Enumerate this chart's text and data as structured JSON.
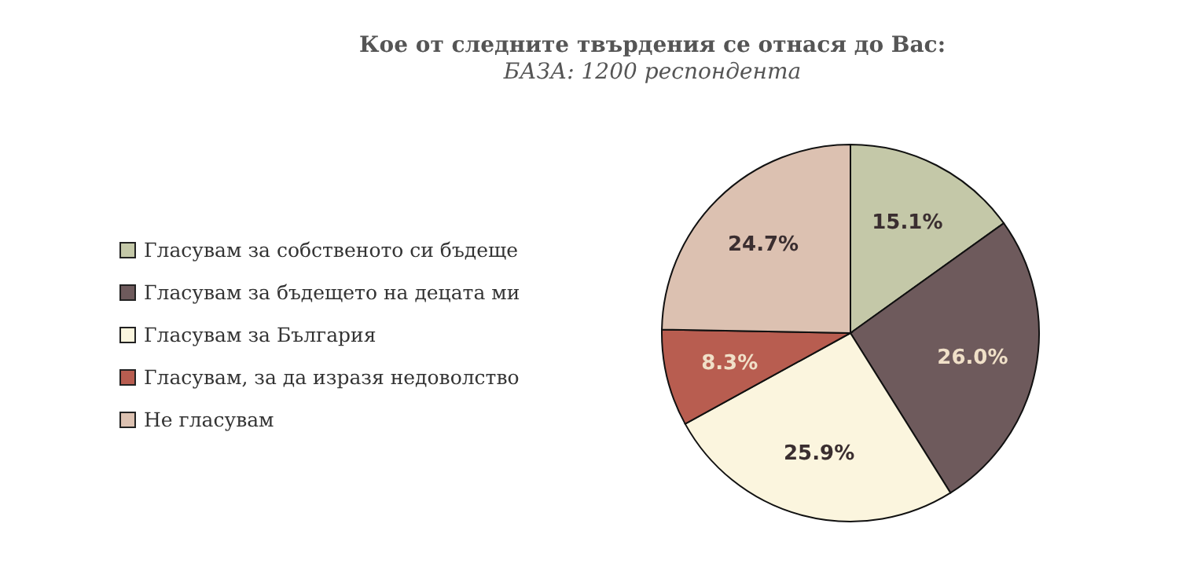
{
  "chart_data": {
    "type": "pie",
    "title": "Кое от следните твърдения се отнася до Вас:",
    "subtitle": "БАЗА: 1200 респондента",
    "categories": [
      "Гласувам за собственото си бъдеще",
      "Гласувам за бъдещето на децата ми",
      "Гласувам за България",
      "Гласувам, за да изразя недоволство",
      "Не гласувам"
    ],
    "values": [
      15.1,
      26.0,
      25.9,
      8.3,
      24.7
    ],
    "colors": [
      "#c4c8a8",
      "#6e5a5c",
      "#fbf5de",
      "#b85d50",
      "#dcc1b1"
    ],
    "value_labels": [
      "15.1%",
      "26.0%",
      "25.9%",
      "8.3%",
      "24.7%"
    ],
    "legend": "left"
  }
}
